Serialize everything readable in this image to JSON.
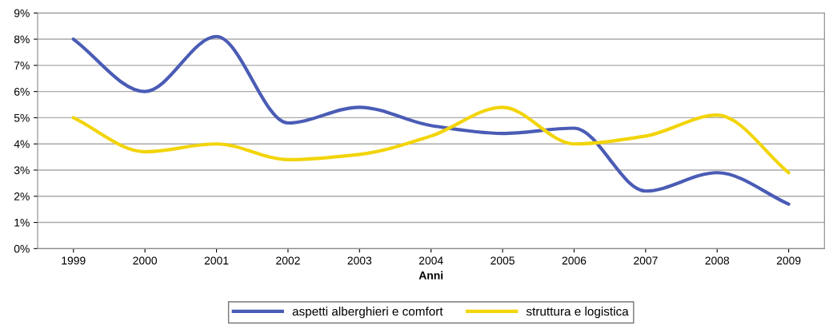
{
  "chart_data": {
    "type": "line",
    "xlabel": "Anni",
    "categories": [
      "1999",
      "2000",
      "2001",
      "2002",
      "2003",
      "2004",
      "2005",
      "2006",
      "2007",
      "2008",
      "2009"
    ],
    "series": [
      {
        "name": "aspetti alberghieri e comfort",
        "color": "#4a5cb5",
        "values": [
          8.0,
          6.0,
          8.1,
          4.8,
          5.4,
          4.7,
          4.4,
          4.6,
          2.2,
          2.9,
          1.7
        ]
      },
      {
        "name": "struttura e logistica",
        "color": "#f2d40a",
        "values": [
          5.0,
          3.7,
          4.0,
          3.4,
          3.6,
          4.3,
          5.4,
          4.0,
          4.3,
          5.1,
          2.9
        ]
      }
    ],
    "ylim": [
      0,
      9
    ],
    "yticks": [
      {
        "value": 0,
        "label": "0%"
      },
      {
        "value": 1,
        "label": "1%"
      },
      {
        "value": 2,
        "label": "2%"
      },
      {
        "value": 3,
        "label": "3%"
      },
      {
        "value": 4,
        "label": "4%"
      },
      {
        "value": 5,
        "label": "5%"
      },
      {
        "value": 6,
        "label": "6%"
      },
      {
        "value": 7,
        "label": "7%"
      },
      {
        "value": 8,
        "label": "8%"
      },
      {
        "value": 9,
        "label": "9%"
      }
    ],
    "grid": "y",
    "legend": "bottom",
    "marker": "none",
    "line_style": "solid"
  }
}
